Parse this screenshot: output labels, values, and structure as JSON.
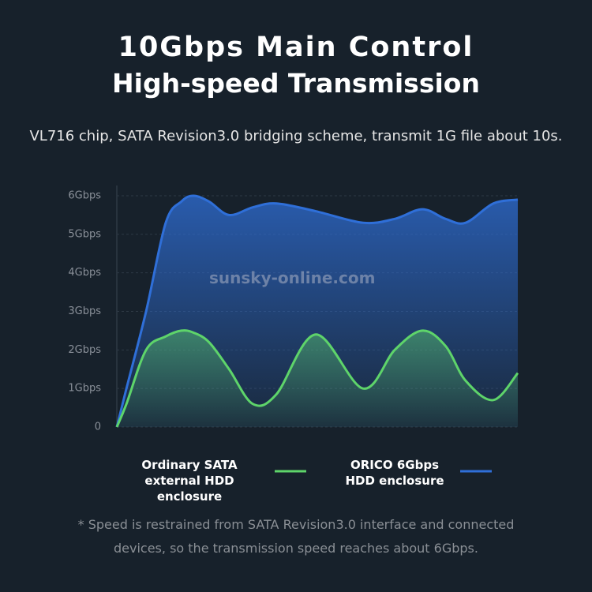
{
  "chart_data": {
    "type": "line",
    "title": "10Gbps Main Control",
    "subtitle": "High-speed Transmission",
    "description": "VL716 chip, SATA Revision3.0 bridging scheme, transmit 1G file about 10s.",
    "watermark": "sunsky-online.com",
    "footnote": "* Speed is restrained from SATA Revision3.0 interface and connected devices, so the transmission speed reaches about 6Gbps.",
    "x": [
      0,
      2.4,
      7.3,
      12.2,
      16.1,
      19.1,
      23,
      28,
      33.9,
      39.8,
      49.6,
      61.4,
      69.3,
      76.2,
      82,
      87,
      93.9,
      100
    ],
    "xlim": [
      0,
      100
    ],
    "series": [
      {
        "name": "Ordinary SATA external HDD enclosure",
        "color": "#5ed46a",
        "values": [
          0,
          0.6,
          2.0,
          2.35,
          2.5,
          2.45,
          2.2,
          1.5,
          0.6,
          0.85,
          2.4,
          1.0,
          2.0,
          2.5,
          2.1,
          1.2,
          0.7,
          1.4
        ]
      },
      {
        "name": "ORICO 6Gbps HDD enclosure",
        "color": "#2f6fd8",
        "values": [
          0,
          1.0,
          3.0,
          5.3,
          5.85,
          6.0,
          5.85,
          5.5,
          5.7,
          5.8,
          5.6,
          5.3,
          5.4,
          5.65,
          5.4,
          5.3,
          5.8,
          5.9
        ]
      }
    ],
    "ylim": [
      0,
      6
    ],
    "yticks": [
      0,
      {
        "value": 1,
        "label": "1Gbps"
      },
      {
        "value": 2,
        "label": "2Gbps"
      },
      {
        "value": 3,
        "label": "3Gbps"
      },
      {
        "value": 4,
        "label": "4Gbps"
      },
      {
        "value": 5,
        "label": "5Gbps"
      },
      {
        "value": 6,
        "label": "6Gbps"
      }
    ],
    "grid": true
  }
}
